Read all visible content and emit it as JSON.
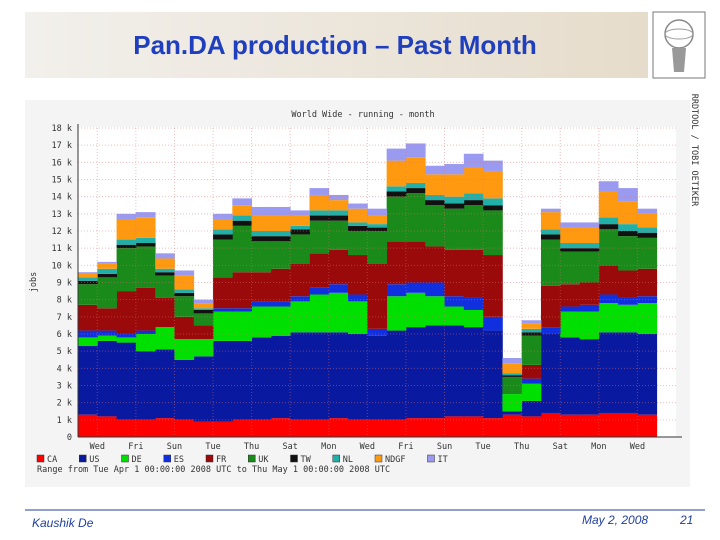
{
  "slide": {
    "title": "Pan.DA production – Past Month",
    "author": "Kaushik De",
    "date": "May 2, 2008",
    "page": "21"
  },
  "chart_data": {
    "type": "bar",
    "stacked": true,
    "title": "World Wide - running - month",
    "y_label": "jobs",
    "side_text": "RRDTOOL / TOBI OETIKER",
    "note": "Range from Tue Apr  1 00:00:00 2008 UTC  to Thu May  1 00:00:00 2008 UTC",
    "grid": true,
    "ylim": [
      0,
      18000
    ],
    "yticks": [
      0,
      {
        "value": 1000,
        "label": "1 k"
      },
      {
        "value": 2000,
        "label": "2 k"
      },
      {
        "value": 3000,
        "label": "3 k"
      },
      {
        "value": 4000,
        "label": "4 k"
      },
      {
        "value": 5000,
        "label": "5 k"
      },
      {
        "value": 6000,
        "label": "6 k"
      },
      {
        "value": 7000,
        "label": "7 k"
      },
      {
        "value": 8000,
        "label": "8 k"
      },
      {
        "value": 9000,
        "label": "9 k"
      },
      {
        "value": 10000,
        "label": "10 k"
      },
      {
        "value": 11000,
        "label": "11 k"
      },
      {
        "value": 12000,
        "label": "12 k"
      },
      {
        "value": 13000,
        "label": "13 k"
      },
      {
        "value": 14000,
        "label": "14 k"
      },
      {
        "value": 15000,
        "label": "15 k"
      },
      {
        "value": 16000,
        "label": "16 k"
      },
      {
        "value": 17000,
        "label": "17 k"
      },
      {
        "value": 18000,
        "label": "18 k"
      }
    ],
    "categories": [
      null,
      "Wed",
      null,
      "Fri",
      null,
      "Sun",
      null,
      "Tue",
      null,
      "Thu",
      null,
      "Sat",
      null,
      "Mon",
      null,
      "Wed",
      null,
      "Fri",
      null,
      "Sun",
      null,
      "Tue",
      null,
      "Thu",
      null,
      "Sat",
      null,
      "Mon",
      null,
      "Wed"
    ],
    "series": [
      {
        "name": "CA",
        "color": "#ff0000",
        "values": [
          1300,
          1200,
          1000,
          1000,
          1100,
          1000,
          900,
          900,
          1000,
          1000,
          1100,
          1000,
          1000,
          1100,
          1000,
          1000,
          1000,
          1100,
          1100,
          1200,
          1200,
          1100,
          1300,
          1200,
          1400,
          1300,
          1300,
          1400,
          1400,
          1300
        ]
      },
      {
        "name": "US",
        "color": "#0a1aa0",
        "values": [
          4000,
          4400,
          4500,
          4000,
          4000,
          3500,
          3800,
          4700,
          4600,
          4800,
          4800,
          5100,
          5100,
          5000,
          5000,
          4900,
          5200,
          5300,
          5400,
          5300,
          5200,
          5100,
          200,
          900,
          4600,
          4500,
          4400,
          4700,
          4700,
          4700
        ]
      },
      {
        "name": "DE",
        "color": "#00e000",
        "values": [
          500,
          300,
          300,
          1000,
          1300,
          1200,
          1000,
          1700,
          1700,
          1800,
          1700,
          1800,
          2200,
          2300,
          1900,
          0,
          2000,
          2000,
          1700,
          1100,
          1000,
          0,
          1000,
          1000,
          0,
          1500,
          1600,
          1700,
          1600,
          1800
        ]
      },
      {
        "name": "ES",
        "color": "#1030e0",
        "values": [
          400,
          300,
          200,
          200,
          0,
          0,
          0,
          200,
          200,
          300,
          300,
          300,
          400,
          500,
          400,
          400,
          700,
          600,
          800,
          600,
          700,
          800,
          0,
          300,
          400,
          300,
          400,
          500,
          400,
          400
        ]
      },
      {
        "name": "FR",
        "color": "#9a0a0a",
        "values": [
          1500,
          1300,
          2500,
          2500,
          1700,
          1300,
          800,
          1800,
          2100,
          1700,
          1900,
          1900,
          2000,
          2000,
          2300,
          3800,
          2500,
          2400,
          2100,
          2700,
          2800,
          3600,
          0,
          800,
          2400,
          1300,
          1300,
          1700,
          1600,
          1600
        ]
      },
      {
        "name": "UK",
        "color": "#1a8a1a",
        "values": [
          1200,
          1800,
          2500,
          2400,
          1300,
          1200,
          700,
          2200,
          2700,
          1800,
          1600,
          1700,
          1900,
          1700,
          1400,
          1900,
          2600,
          2800,
          2400,
          2400,
          2600,
          2600,
          1000,
          1700,
          2700,
          1900,
          1800,
          2100,
          2000,
          1800
        ]
      },
      {
        "name": "TW",
        "color": "#111111",
        "values": [
          200,
          200,
          200,
          200,
          200,
          200,
          200,
          300,
          300,
          300,
          300,
          300,
          300,
          300,
          300,
          200,
          300,
          300,
          300,
          300,
          300,
          300,
          100,
          200,
          300,
          200,
          200,
          300,
          300,
          300
        ]
      },
      {
        "name": "NL",
        "color": "#20b0a8",
        "values": [
          200,
          300,
          300,
          300,
          200,
          200,
          100,
          300,
          300,
          300,
          300,
          200,
          300,
          300,
          200,
          200,
          300,
          300,
          300,
          400,
          400,
          400,
          100,
          200,
          300,
          300,
          300,
          400,
          400,
          300
        ]
      },
      {
        "name": "NDGF",
        "color": "#ff9a10",
        "values": [
          200,
          300,
          1200,
          1200,
          600,
          800,
          300,
          600,
          600,
          900,
          900,
          600,
          900,
          600,
          800,
          500,
          1500,
          1500,
          1200,
          1300,
          1500,
          1600,
          600,
          300,
          1000,
          900,
          900,
          1500,
          1300,
          800
        ]
      },
      {
        "name": "IT",
        "color": "#9a9af0",
        "values": [
          100,
          100,
          300,
          300,
          300,
          300,
          200,
          300,
          400,
          500,
          500,
          300,
          400,
          300,
          300,
          400,
          700,
          800,
          500,
          600,
          800,
          600,
          300,
          200,
          200,
          300,
          300,
          600,
          800,
          300
        ]
      }
    ]
  }
}
